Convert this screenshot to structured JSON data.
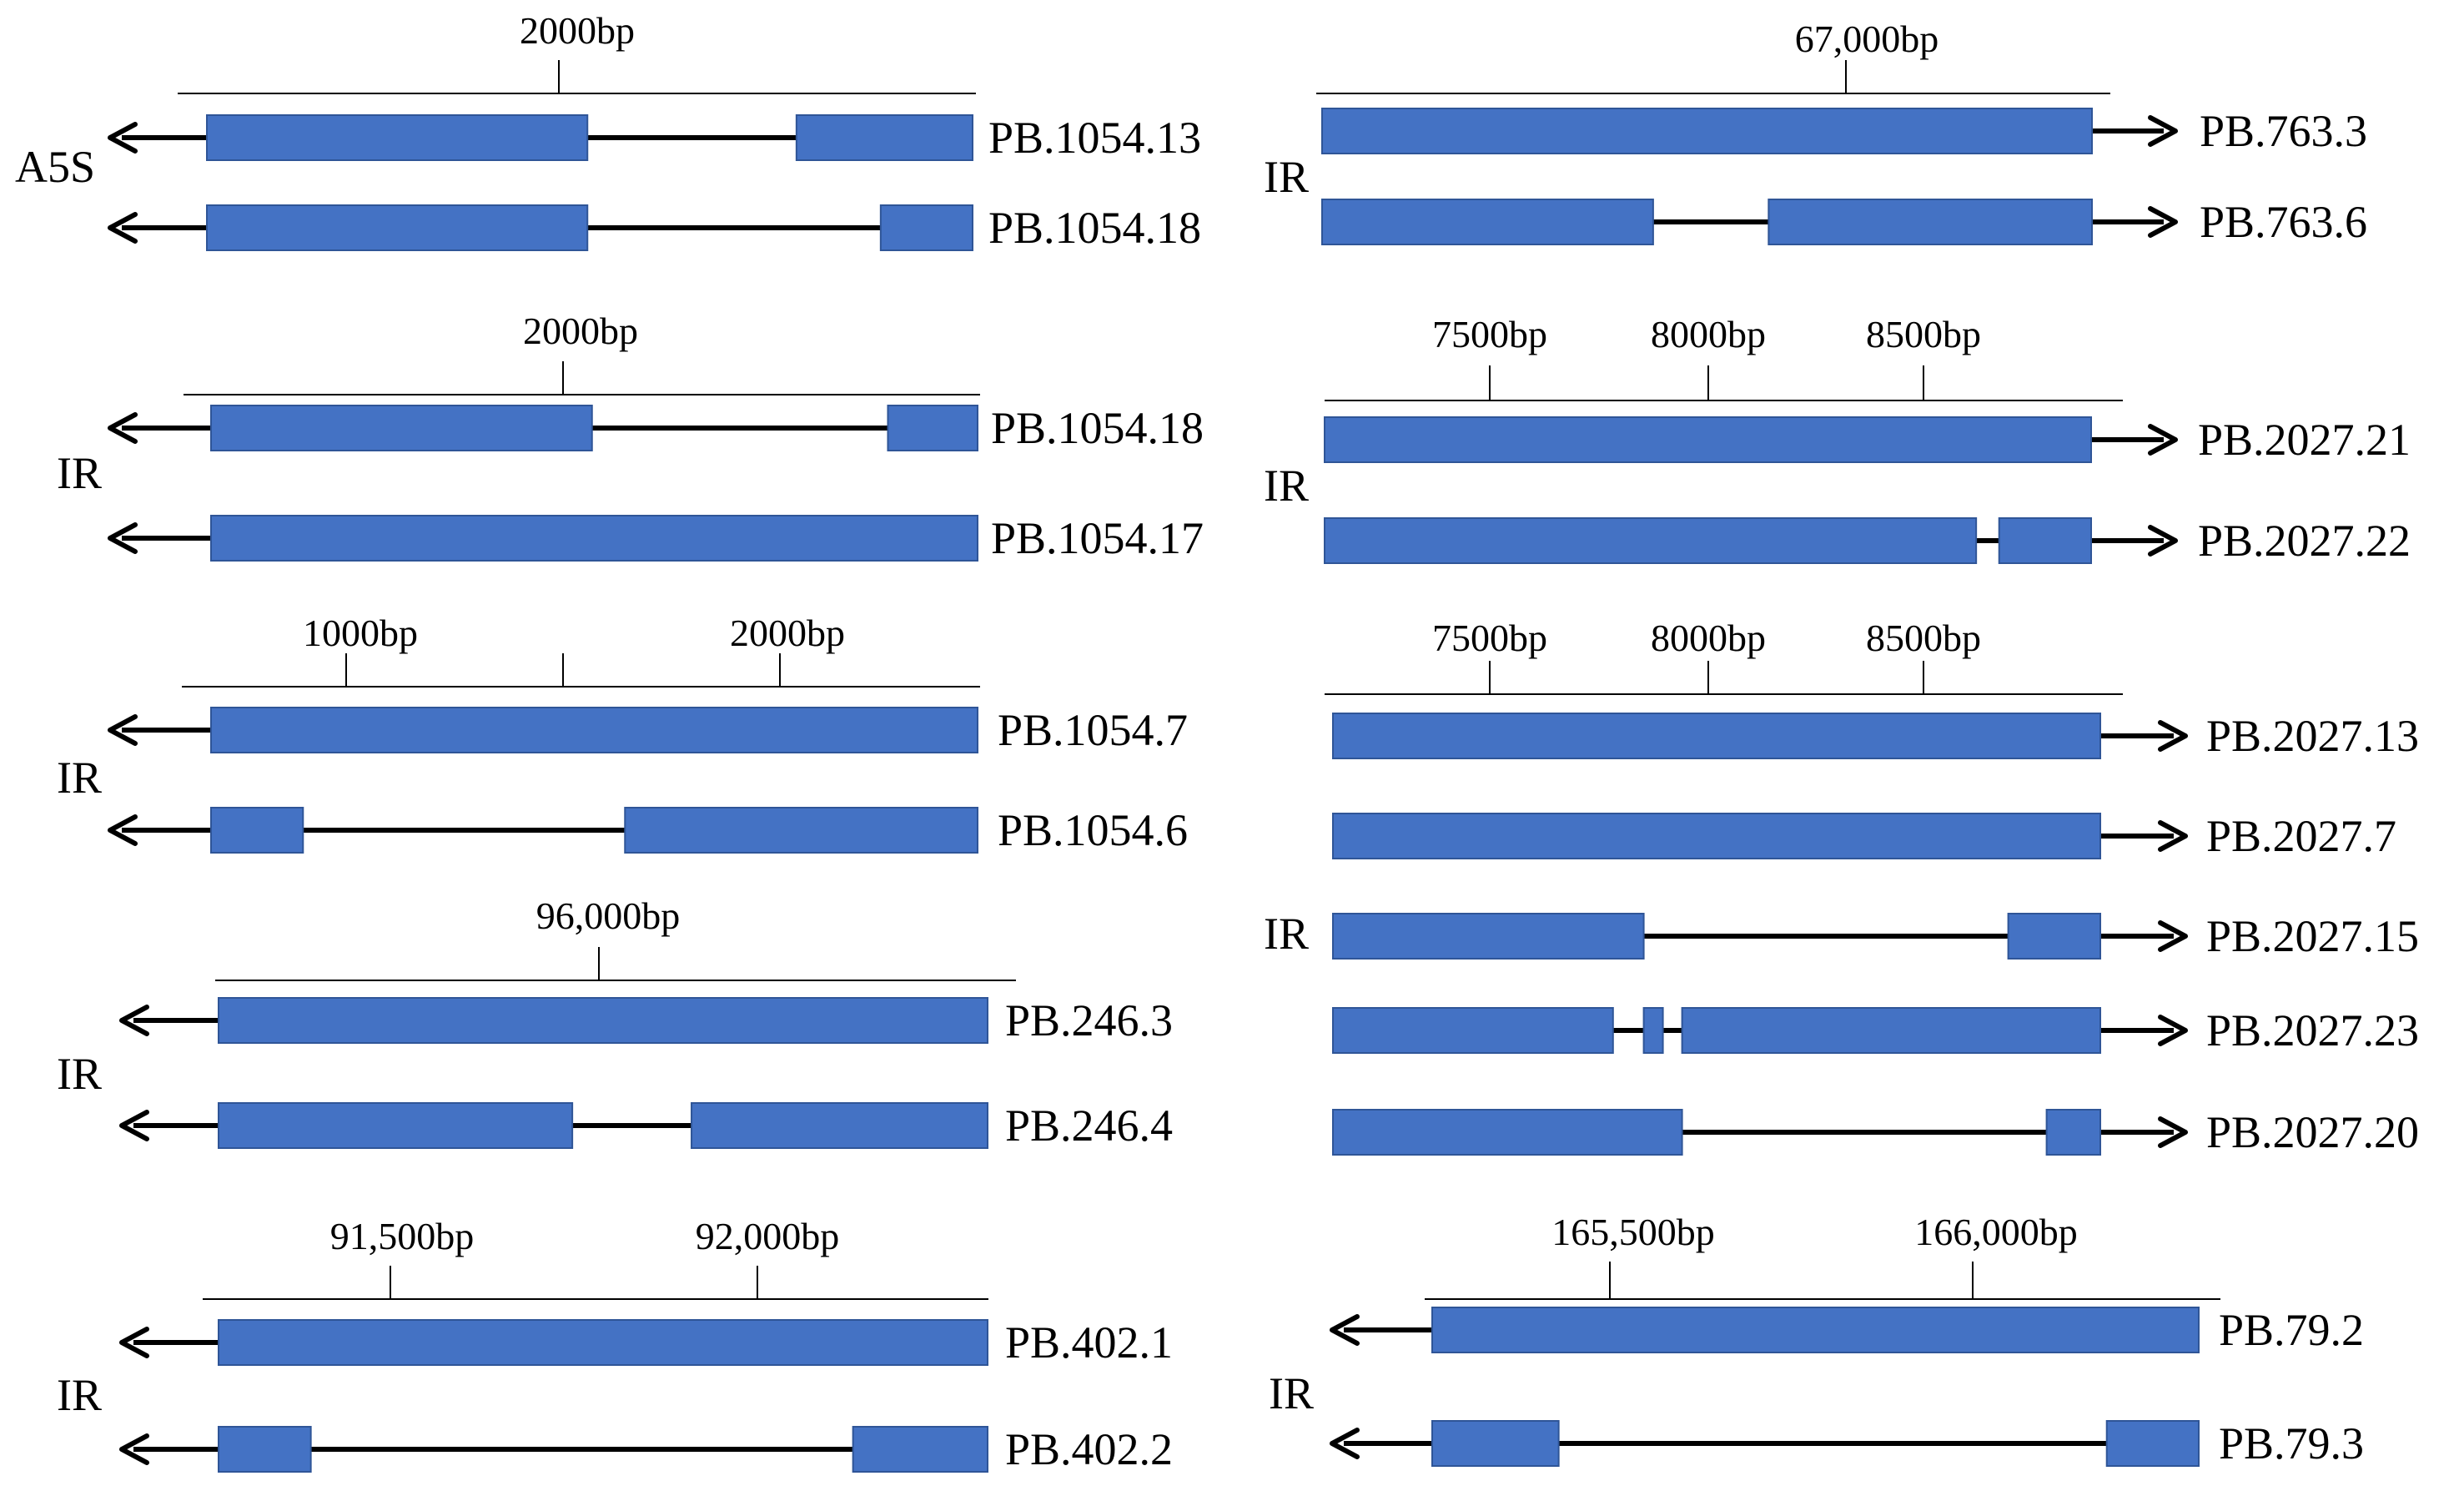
{
  "figure": "isoform structure diagram",
  "colors": {
    "exon": "#4472C4",
    "exon_border": "#2F5597",
    "line": "#000000"
  },
  "panels": [
    {
      "id": "p1",
      "event": "A5S",
      "strand": "reverse",
      "ticks": [
        {
          "label": "2000bp"
        }
      ],
      "isoforms": [
        {
          "name": "PB.1054.13",
          "exons": [
            [
              0.0,
              0.497
            ],
            [
              0.77,
              1.0
            ]
          ]
        },
        {
          "name": "PB.1054.18",
          "exons": [
            [
              0.0,
              0.497
            ],
            [
              0.88,
              1.0
            ]
          ]
        }
      ]
    },
    {
      "id": "p2",
      "event": "IR",
      "strand": "reverse",
      "ticks": [
        {
          "label": "2000bp"
        }
      ],
      "isoforms": [
        {
          "name": "PB.1054.18",
          "exons": [
            [
              0.0,
              0.497
            ],
            [
              0.883,
              1.0
            ]
          ]
        },
        {
          "name": "PB.1054.17",
          "exons": [
            [
              0.0,
              1.0
            ]
          ]
        }
      ]
    },
    {
      "id": "p3",
      "event": "IR",
      "strand": "reverse",
      "ticks": [
        {
          "label": "1000bp"
        },
        {
          "label": ""
        },
        {
          "label": "2000bp"
        }
      ],
      "isoforms": [
        {
          "name": "PB.1054.7",
          "exons": [
            [
              0.0,
              1.0
            ]
          ]
        },
        {
          "name": "PB.1054.6",
          "exons": [
            [
              0.0,
              0.12
            ],
            [
              0.54,
              1.0
            ]
          ]
        }
      ]
    },
    {
      "id": "p4",
      "event": "IR",
      "strand": "reverse",
      "ticks": [
        {
          "label": "96,000bp"
        }
      ],
      "isoforms": [
        {
          "name": "PB.246.3",
          "exons": [
            [
              0.0,
              1.0
            ]
          ]
        },
        {
          "name": "PB.246.4",
          "exons": [
            [
              0.0,
              0.46
            ],
            [
              0.615,
              1.0
            ]
          ]
        }
      ]
    },
    {
      "id": "p5",
      "event": "IR",
      "strand": "reverse",
      "ticks": [
        {
          "label": "91,500bp"
        },
        {
          "label": "92,000bp"
        }
      ],
      "isoforms": [
        {
          "name": "PB.402.1",
          "exons": [
            [
              0.0,
              1.0
            ]
          ]
        },
        {
          "name": "PB.402.2",
          "exons": [
            [
              0.0,
              0.12
            ],
            [
              0.825,
              1.0
            ]
          ]
        }
      ]
    },
    {
      "id": "p6",
      "event": "IR",
      "strand": "forward",
      "ticks": [
        {
          "label": "67,000bp"
        }
      ],
      "isoforms": [
        {
          "name": "PB.763.3",
          "exons": [
            [
              0.0,
              1.0
            ]
          ]
        },
        {
          "name": "PB.763.6",
          "exons": [
            [
              0.0,
              0.43
            ],
            [
              0.58,
              1.0
            ]
          ]
        }
      ]
    },
    {
      "id": "p7",
      "event": "IR",
      "strand": "forward",
      "ticks": [
        {
          "label": "7500bp"
        },
        {
          "label": "8000bp"
        },
        {
          "label": "8500bp"
        }
      ],
      "isoforms": [
        {
          "name": "PB.2027.21",
          "exons": [
            [
              0.0,
              1.0
            ]
          ]
        },
        {
          "name": "PB.2027.22",
          "exons": [
            [
              0.0,
              0.85
            ],
            [
              0.88,
              1.0
            ]
          ]
        }
      ]
    },
    {
      "id": "p8",
      "event": "IR",
      "strand": "forward",
      "ticks": [
        {
          "label": "7500bp"
        },
        {
          "label": "8000bp"
        },
        {
          "label": "8500bp"
        }
      ],
      "isoforms": [
        {
          "name": "PB.2027.13",
          "exons": [
            [
              0.0,
              1.0
            ]
          ]
        },
        {
          "name": "PB.2027.7",
          "exons": [
            [
              0.0,
              1.0
            ]
          ]
        },
        {
          "name": "PB.2027.15",
          "exons": [
            [
              0.0,
              0.405
            ],
            [
              0.88,
              1.0
            ]
          ]
        },
        {
          "name": "PB.2027.23",
          "exons": [
            [
              0.0,
              0.365
            ],
            [
              0.405,
              0.43
            ],
            [
              0.455,
              1.0
            ]
          ]
        },
        {
          "name": "PB.2027.20",
          "exons": [
            [
              0.0,
              0.455
            ],
            [
              0.93,
              1.0
            ]
          ]
        }
      ]
    },
    {
      "id": "p9",
      "event": "IR",
      "strand": "reverse",
      "ticks": [
        {
          "label": "165,500bp"
        },
        {
          "label": "166,000bp"
        }
      ],
      "isoforms": [
        {
          "name": "PB.79.2",
          "exons": [
            [
              0.0,
              1.0
            ]
          ]
        },
        {
          "name": "PB.79.3",
          "exons": [
            [
              0.0,
              0.165
            ],
            [
              0.88,
              1.0
            ]
          ]
        }
      ]
    }
  ]
}
